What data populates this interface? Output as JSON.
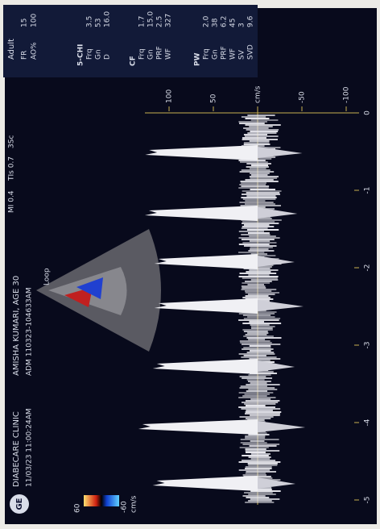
{
  "header": {
    "logo": "GE",
    "clinic": "DIABECARE CLINIC",
    "datetime": "11/03/23 11:00:24AM",
    "patient": "AMISHA KUMARI, AGE 30",
    "id": "ADM 110323-104633AM",
    "mi": "MI 0.4",
    "tis": "TIs 0.7",
    "probe": "3Sc"
  },
  "panel": {
    "preset": "Adult",
    "rows": [
      [
        "FR",
        "15"
      ],
      [
        "AO%",
        "100"
      ]
    ],
    "sections": [
      {
        "title": "5-CHI",
        "rows": [
          [
            "Frq",
            "3.5"
          ],
          [
            "Gn",
            "53"
          ],
          [
            "D",
            "16.0"
          ]
        ]
      },
      {
        "title": "CF",
        "rows": [
          [
            "Frq",
            "1.7"
          ],
          [
            "Gn",
            "15.0"
          ],
          [
            "PRF",
            "2.5"
          ],
          [
            "WF",
            "327"
          ]
        ]
      },
      {
        "title": "PW",
        "rows": [
          [
            "Frq",
            "2.0"
          ],
          [
            "Gn",
            "38"
          ],
          [
            "PRF",
            "6.2"
          ],
          [
            "WF",
            "45"
          ],
          [
            "SV",
            "3"
          ],
          [
            "SVD",
            "9.6"
          ]
        ]
      }
    ]
  },
  "color_bar": {
    "top": "60",
    "bottom": "-60",
    "unit": "cm/s"
  },
  "sector_label": "Loop",
  "velocity_scale": [
    "100",
    "50",
    "cm/s",
    "-50",
    "-100"
  ],
  "time_scale": [
    "-5",
    "-4",
    "-3",
    "-2",
    "-1",
    "0"
  ]
}
